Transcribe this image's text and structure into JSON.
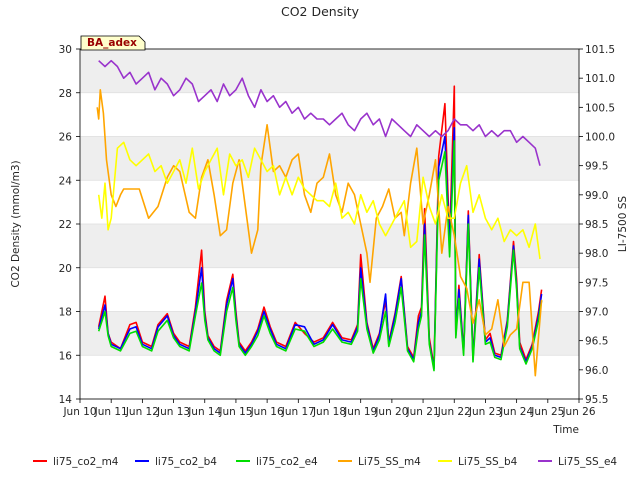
{
  "chart_data": {
    "type": "line",
    "title": "CO2 Density",
    "xlabel": "Time",
    "ylabel": "CO2 Density (mmol/m3)",
    "y2label": "LI-7500 SS",
    "site_label": "BA_adex",
    "xlim": [
      10,
      26
    ],
    "ylim": [
      14,
      30
    ],
    "y2lim": [
      95.5,
      101.5
    ],
    "x_ticks": [
      10,
      11,
      12,
      13,
      14,
      15,
      16,
      17,
      18,
      19,
      20,
      21,
      22,
      23,
      24,
      25,
      26
    ],
    "x_tick_labels": [
      "Jun 10",
      "Jun 11",
      "Jun 12",
      "Jun 13",
      "Jun 14",
      "Jun 15",
      "Jun 16",
      "Jun 17",
      "Jun 18",
      "Jun 19",
      "Jun 20",
      "Jun 21",
      "Jun 22",
      "Jun 23",
      "Jun 24",
      "Jun 25",
      "Jun 26"
    ],
    "y_ticks": [
      14,
      16,
      18,
      20,
      22,
      24,
      26,
      28,
      30
    ],
    "y2_ticks": [
      95.5,
      96.0,
      96.5,
      97.0,
      97.5,
      98.0,
      98.5,
      99.0,
      99.5,
      100.0,
      100.5,
      101.0,
      101.5
    ],
    "grid": "horizontal",
    "background_bands": true,
    "legend_position": "bottom",
    "x_is_day_of_june": true,
    "series": [
      {
        "name": "li75_co2_m4",
        "color": "#ff0000",
        "axis": "left",
        "x": [
          10.6,
          10.8,
          10.9,
          11.0,
          11.3,
          11.6,
          11.8,
          12.0,
          12.3,
          12.5,
          12.8,
          13.0,
          13.2,
          13.5,
          13.7,
          13.9,
          14.0,
          14.1,
          14.3,
          14.5,
          14.7,
          14.9,
          15.0,
          15.1,
          15.3,
          15.5,
          15.7,
          15.9,
          16.1,
          16.3,
          16.6,
          16.9,
          17.2,
          17.5,
          17.8,
          18.1,
          18.4,
          18.7,
          18.9,
          19.0,
          19.2,
          19.4,
          19.6,
          19.8,
          19.9,
          20.1,
          20.3,
          20.5,
          20.7,
          20.85,
          20.95,
          21.05,
          21.2,
          21.35,
          21.5,
          21.7,
          21.85,
          22.0,
          22.05,
          22.15,
          22.3,
          22.45,
          22.6,
          22.8,
          23.0,
          23.15,
          23.3,
          23.5,
          23.7,
          23.9,
          24.0,
          24.1,
          24.3,
          24.5,
          24.7,
          24.8
        ],
        "y": [
          17.3,
          18.7,
          17.0,
          16.6,
          16.3,
          17.4,
          17.5,
          16.6,
          16.4,
          17.4,
          17.9,
          17.0,
          16.6,
          16.4,
          18.2,
          20.8,
          18.0,
          16.9,
          16.4,
          16.2,
          18.5,
          19.7,
          18.0,
          16.6,
          16.2,
          16.6,
          17.2,
          18.2,
          17.3,
          16.6,
          16.4,
          17.5,
          17.0,
          16.6,
          16.8,
          17.5,
          16.8,
          16.7,
          17.4,
          20.6,
          17.5,
          16.3,
          17.0,
          18.5,
          16.6,
          17.9,
          19.6,
          16.4,
          15.9,
          17.8,
          18.2,
          22.7,
          16.8,
          15.5,
          25.1,
          27.5,
          21.2,
          28.3,
          17.0,
          19.2,
          16.2,
          22.6,
          15.9,
          20.6,
          16.7,
          17.0,
          16.1,
          16.0,
          17.6,
          21.2,
          19.5,
          16.6,
          15.8,
          16.5,
          18.0,
          19.0
        ]
      },
      {
        "name": "li75_co2_b4",
        "color": "#0000ff",
        "axis": "left",
        "x": [
          10.6,
          10.8,
          10.9,
          11.0,
          11.3,
          11.6,
          11.8,
          12.0,
          12.3,
          12.5,
          12.8,
          13.0,
          13.2,
          13.5,
          13.7,
          13.9,
          14.0,
          14.1,
          14.3,
          14.5,
          14.7,
          14.9,
          15.0,
          15.1,
          15.3,
          15.5,
          15.7,
          15.9,
          16.1,
          16.3,
          16.6,
          16.9,
          17.2,
          17.5,
          17.8,
          18.1,
          18.4,
          18.7,
          18.9,
          19.0,
          19.2,
          19.4,
          19.6,
          19.8,
          19.9,
          20.1,
          20.3,
          20.5,
          20.7,
          20.85,
          20.95,
          21.05,
          21.2,
          21.35,
          21.5,
          21.7,
          21.85,
          22.0,
          22.05,
          22.15,
          22.3,
          22.45,
          22.6,
          22.8,
          23.0,
          23.15,
          23.3,
          23.5,
          23.7,
          23.9,
          24.0,
          24.1,
          24.3,
          24.5,
          24.7,
          24.8
        ],
        "y": [
          17.2,
          18.3,
          17.0,
          16.5,
          16.3,
          17.2,
          17.3,
          16.5,
          16.3,
          17.3,
          17.8,
          16.9,
          16.5,
          16.3,
          18.0,
          20.0,
          17.8,
          16.8,
          16.3,
          16.1,
          18.3,
          19.5,
          17.8,
          16.5,
          16.1,
          16.5,
          17.1,
          18.0,
          17.2,
          16.5,
          16.3,
          17.4,
          17.3,
          16.5,
          16.7,
          17.4,
          16.7,
          16.6,
          17.3,
          20.0,
          17.4,
          16.2,
          16.9,
          18.8,
          16.5,
          17.8,
          19.5,
          16.3,
          15.8,
          17.5,
          18.0,
          22.0,
          16.6,
          15.4,
          24.6,
          26.0,
          21.0,
          26.4,
          16.9,
          19.0,
          16.1,
          22.4,
          15.8,
          20.4,
          16.6,
          16.8,
          16.0,
          15.9,
          17.5,
          21.0,
          19.2,
          16.4,
          15.7,
          16.4,
          17.8,
          18.8
        ]
      },
      {
        "name": "li75_co2_e4",
        "color": "#00dd00",
        "axis": "left",
        "x": [
          10.6,
          10.8,
          10.9,
          11.0,
          11.3,
          11.6,
          11.8,
          12.0,
          12.3,
          12.5,
          12.8,
          13.0,
          13.2,
          13.5,
          13.7,
          13.9,
          14.0,
          14.1,
          14.3,
          14.5,
          14.7,
          14.9,
          15.0,
          15.1,
          15.3,
          15.5,
          15.7,
          15.9,
          16.1,
          16.3,
          16.6,
          16.9,
          17.2,
          17.5,
          17.8,
          18.1,
          18.4,
          18.7,
          18.9,
          19.0,
          19.2,
          19.4,
          19.6,
          19.8,
          19.9,
          20.1,
          20.3,
          20.5,
          20.7,
          20.85,
          20.95,
          21.05,
          21.2,
          21.35,
          21.5,
          21.7,
          21.85,
          22.0,
          22.05,
          22.15,
          22.3,
          22.45,
          22.6,
          22.8,
          23.0,
          23.15,
          23.3,
          23.5,
          23.7,
          23.9,
          24.0,
          24.1,
          24.3,
          24.5,
          24.7,
          24.8
        ],
        "y": [
          17.1,
          18.0,
          16.9,
          16.4,
          16.2,
          17.0,
          17.1,
          16.4,
          16.2,
          17.1,
          17.6,
          16.8,
          16.4,
          16.2,
          17.8,
          19.3,
          17.6,
          16.7,
          16.2,
          16.0,
          18.0,
          19.1,
          17.6,
          16.4,
          16.0,
          16.4,
          16.9,
          17.8,
          17.0,
          16.4,
          16.2,
          17.2,
          17.1,
          16.4,
          16.6,
          17.2,
          16.6,
          16.5,
          17.1,
          19.5,
          17.2,
          16.1,
          16.7,
          18.0,
          16.4,
          17.5,
          19.1,
          16.2,
          15.7,
          17.2,
          17.8,
          21.5,
          16.5,
          15.3,
          24.0,
          25.3,
          20.5,
          25.8,
          16.8,
          18.6,
          16.0,
          22.0,
          15.7,
          20.0,
          16.5,
          16.6,
          15.9,
          15.8,
          17.3,
          20.8,
          19.0,
          16.3,
          15.6,
          16.3,
          17.6,
          18.5
        ]
      },
      {
        "name": "Li75_SS_m4",
        "color": "#ffa500",
        "axis": "right",
        "x": [
          10.55,
          10.6,
          10.65,
          10.75,
          10.85,
          11.0,
          11.15,
          11.3,
          11.4,
          11.6,
          11.9,
          12.2,
          12.5,
          12.8,
          13.0,
          13.2,
          13.5,
          13.7,
          13.9,
          14.1,
          14.3,
          14.5,
          14.7,
          14.9,
          15.1,
          15.3,
          15.5,
          15.7,
          15.8,
          16.0,
          16.2,
          16.4,
          16.6,
          16.8,
          17.0,
          17.2,
          17.4,
          17.6,
          17.8,
          18.0,
          18.2,
          18.4,
          18.6,
          18.8,
          19.0,
          19.2,
          19.3,
          19.5,
          19.7,
          19.9,
          20.1,
          20.3,
          20.4,
          20.6,
          20.8,
          21.0,
          21.2,
          21.4,
          21.6,
          21.8,
          22.0,
          22.2,
          22.4,
          22.6,
          22.8,
          23.0,
          23.2,
          23.4,
          23.6,
          23.8,
          24.0,
          24.2,
          24.4,
          24.6,
          24.8
        ],
        "y": [
          100.5,
          100.3,
          100.8,
          100.4,
          99.6,
          99.0,
          98.8,
          99.0,
          99.1,
          99.1,
          99.1,
          98.6,
          98.8,
          99.3,
          99.5,
          99.4,
          98.7,
          98.6,
          99.3,
          99.6,
          99.0,
          98.3,
          98.4,
          99.2,
          99.6,
          98.8,
          98.0,
          98.4,
          99.5,
          100.2,
          99.4,
          99.5,
          99.3,
          99.6,
          99.7,
          99.0,
          98.7,
          99.2,
          99.3,
          99.7,
          99.0,
          98.7,
          99.2,
          99.0,
          98.5,
          98.0,
          97.5,
          98.6,
          98.8,
          99.1,
          98.6,
          98.7,
          98.3,
          99.2,
          99.8,
          98.5,
          99.0,
          99.6,
          98.0,
          98.8,
          98.3,
          97.6,
          97.4,
          96.8,
          97.2,
          96.6,
          96.7,
          97.2,
          96.4,
          96.6,
          96.7,
          97.5,
          97.5,
          95.9,
          97.2
        ]
      },
      {
        "name": "Li75_SS_b4",
        "color": "#ffff00",
        "axis": "right",
        "x": [
          10.6,
          10.7,
          10.8,
          10.9,
          11.0,
          11.2,
          11.4,
          11.6,
          11.8,
          12.0,
          12.2,
          12.4,
          12.6,
          12.8,
          13.0,
          13.2,
          13.4,
          13.6,
          13.8,
          14.0,
          14.2,
          14.4,
          14.6,
          14.8,
          15.0,
          15.2,
          15.4,
          15.6,
          15.8,
          16.0,
          16.2,
          16.4,
          16.6,
          16.8,
          17.0,
          17.2,
          17.4,
          17.6,
          17.8,
          18.0,
          18.2,
          18.4,
          18.6,
          18.8,
          19.0,
          19.2,
          19.4,
          19.6,
          19.8,
          20.0,
          20.2,
          20.4,
          20.6,
          20.8,
          21.0,
          21.2,
          21.4,
          21.6,
          21.8,
          22.0,
          22.2,
          22.4,
          22.6,
          22.8,
          23.0,
          23.2,
          23.4,
          23.6,
          23.8,
          24.0,
          24.2,
          24.4,
          24.6,
          24.75
        ],
        "y": [
          99.0,
          98.6,
          99.2,
          98.4,
          98.6,
          99.8,
          99.9,
          99.6,
          99.5,
          99.6,
          99.7,
          99.4,
          99.5,
          99.2,
          99.4,
          99.6,
          99.2,
          99.8,
          99.1,
          99.4,
          99.6,
          99.8,
          99.0,
          99.7,
          99.5,
          99.6,
          99.3,
          99.8,
          99.6,
          99.4,
          99.5,
          99.0,
          99.3,
          99.0,
          99.3,
          99.1,
          99.0,
          98.9,
          98.9,
          98.8,
          99.2,
          98.6,
          98.7,
          98.5,
          99.0,
          98.7,
          98.9,
          98.5,
          98.3,
          98.5,
          98.7,
          98.9,
          98.1,
          98.2,
          99.3,
          98.8,
          98.5,
          99.0,
          98.6,
          98.6,
          99.2,
          99.5,
          98.7,
          99.0,
          98.6,
          98.4,
          98.6,
          98.2,
          98.4,
          98.3,
          98.4,
          98.1,
          98.5,
          97.9
        ]
      },
      {
        "name": "Li75_SS_e4",
        "color": "#9933cc",
        "axis": "right",
        "x": [
          10.6,
          10.8,
          11.0,
          11.2,
          11.4,
          11.6,
          11.8,
          12.0,
          12.2,
          12.4,
          12.6,
          12.8,
          13.0,
          13.2,
          13.4,
          13.6,
          13.8,
          14.0,
          14.2,
          14.4,
          14.6,
          14.8,
          15.0,
          15.2,
          15.4,
          15.6,
          15.8,
          16.0,
          16.2,
          16.4,
          16.6,
          16.8,
          17.0,
          17.2,
          17.4,
          17.6,
          17.8,
          18.0,
          18.2,
          18.4,
          18.6,
          18.8,
          19.0,
          19.2,
          19.4,
          19.6,
          19.8,
          20.0,
          20.2,
          20.4,
          20.6,
          20.8,
          21.0,
          21.2,
          21.4,
          21.6,
          21.8,
          22.0,
          22.2,
          22.4,
          22.6,
          22.8,
          23.0,
          23.2,
          23.4,
          23.6,
          23.8,
          24.0,
          24.2,
          24.4,
          24.6,
          24.75
        ],
        "y": [
          101.3,
          101.2,
          101.3,
          101.2,
          101.0,
          101.1,
          100.9,
          101.0,
          101.1,
          100.8,
          101.0,
          100.9,
          100.7,
          100.8,
          101.0,
          100.9,
          100.6,
          100.7,
          100.8,
          100.6,
          100.9,
          100.7,
          100.8,
          101.0,
          100.7,
          100.5,
          100.8,
          100.6,
          100.7,
          100.5,
          100.6,
          100.4,
          100.5,
          100.3,
          100.4,
          100.3,
          100.3,
          100.2,
          100.3,
          100.4,
          100.2,
          100.1,
          100.3,
          100.4,
          100.2,
          100.3,
          100.0,
          100.3,
          100.2,
          100.1,
          100.0,
          100.2,
          100.1,
          100.0,
          100.1,
          100.0,
          100.1,
          100.3,
          100.2,
          100.2,
          100.1,
          100.2,
          100.0,
          100.1,
          100.0,
          100.1,
          100.1,
          99.9,
          100.0,
          99.9,
          99.8,
          99.5
        ]
      }
    ]
  }
}
